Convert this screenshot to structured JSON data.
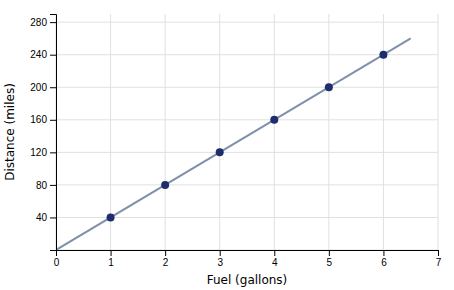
{
  "chart_data": {
    "type": "scatter",
    "xlabel": "Fuel (gallons)",
    "ylabel": "Distance (miles)",
    "series": [
      {
        "type": "line",
        "color": "#8090aa",
        "line_style": "solid",
        "x": [
          0,
          6.5
        ],
        "values": [
          0,
          260
        ]
      },
      {
        "type": "scatter",
        "color": "#1e2d6b",
        "marker": "circle",
        "x": [
          1,
          2,
          3,
          4,
          5,
          6
        ],
        "values": [
          40,
          80,
          120,
          160,
          200,
          240
        ]
      }
    ],
    "xlim": [
      0,
      7
    ],
    "ylim": [
      0,
      290
    ],
    "xticks": [
      0,
      1,
      2,
      3,
      4,
      5,
      6,
      7
    ],
    "yticks": [
      {
        "value": 0,
        "label": null
      },
      40,
      80,
      120,
      160,
      200,
      240,
      280
    ],
    "grid": true
  }
}
